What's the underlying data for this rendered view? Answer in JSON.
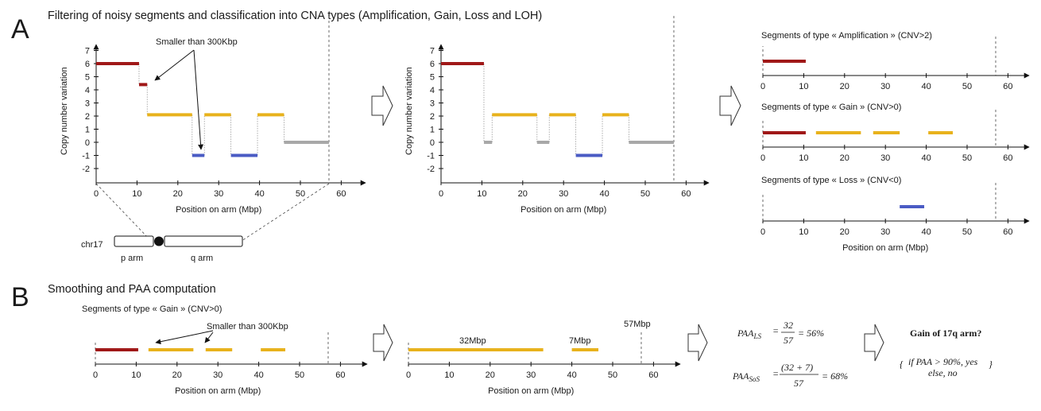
{
  "colors": {
    "amplification": "#a01818",
    "gain": "#e8b21c",
    "loss": "#4a5bc4",
    "neutral": "#a8a8a8",
    "axis": "#111111",
    "connector": "#999999"
  },
  "panel_a": {
    "letter": "A",
    "heading": "Filtering of noisy segments and classification into CNA types (Amplification, Gain, Loss and LOH)",
    "annotation": "Smaller than 300Kbp",
    "ylabel": "Copy number variation",
    "xlabel": "Position on arm (Mbp)",
    "chromosome": {
      "name": "chr17",
      "p_label": "p arm",
      "q_label": "q arm"
    },
    "type_titles": {
      "amplification": "Segments of type « Amplification » (CNV>2)",
      "gain": "Segments of type « Gain » (CNV>0)",
      "loss": "Segments of type « Loss » (CNV<0)"
    }
  },
  "panel_b": {
    "letter": "B",
    "heading": "Smoothing and PAA computation",
    "subtitle": "Segments of type « Gain » (CNV>0)",
    "annotation": "Smaller than 300Kbp",
    "xlabel": "Position on arm (Mbp)",
    "label_32": "32Mbp",
    "label_7": "7Mbp",
    "label_57": "57Mbp",
    "formula_ls": {
      "lhs": "PAA",
      "sub": "LS",
      "num": "32",
      "den": "57",
      "result": "= 56%"
    },
    "formula_sos": {
      "lhs": "PAA",
      "sub": "SoS",
      "num": "(32 + 7)",
      "den": "57",
      "result": "= 68%"
    },
    "question": "Gain of 17q arm?",
    "rule_line1": "if PAA > 90%, yes",
    "rule_line2": "else, no"
  },
  "chart_data": [
    {
      "type": "step-segments",
      "id": "raw",
      "xlabel": "Position on arm (Mbp)",
      "ylabel": "Copy number variation",
      "xlim": [
        0,
        60
      ],
      "ylim": [
        -2,
        7
      ],
      "x_ticks": [
        0,
        10,
        20,
        30,
        40,
        50,
        60
      ],
      "y_ticks": [
        -2,
        -1,
        0,
        1,
        2,
        3,
        4,
        5,
        6,
        7
      ],
      "arm_end": 57,
      "segments": [
        {
          "x0": 0,
          "x1": 10.5,
          "y": 6,
          "type": "amplification"
        },
        {
          "x0": 10.5,
          "x1": 12.5,
          "y": 4.4,
          "type": "amplification"
        },
        {
          "x0": 12.5,
          "x1": 23.5,
          "y": 2.1,
          "type": "gain"
        },
        {
          "x0": 23.5,
          "x1": 26.5,
          "y": -1,
          "type": "loss"
        },
        {
          "x0": 26.5,
          "x1": 33,
          "y": 2.1,
          "type": "gain"
        },
        {
          "x0": 33,
          "x1": 39.5,
          "y": -1,
          "type": "loss"
        },
        {
          "x0": 39.5,
          "x1": 46,
          "y": 2.1,
          "type": "gain"
        },
        {
          "x0": 46,
          "x1": 57,
          "y": 0,
          "type": "neutral"
        }
      ]
    },
    {
      "type": "step-segments",
      "id": "filtered",
      "xlabel": "Position on arm (Mbp)",
      "ylabel": "Copy number variation",
      "xlim": [
        0,
        60
      ],
      "ylim": [
        -2,
        7
      ],
      "x_ticks": [
        0,
        10,
        20,
        30,
        40,
        50,
        60
      ],
      "y_ticks": [
        -2,
        -1,
        0,
        1,
        2,
        3,
        4,
        5,
        6,
        7
      ],
      "arm_end": 57,
      "segments": [
        {
          "x0": 0,
          "x1": 10.5,
          "y": 6,
          "type": "amplification"
        },
        {
          "x0": 10.5,
          "x1": 12.5,
          "y": 0,
          "type": "neutral"
        },
        {
          "x0": 12.5,
          "x1": 23.5,
          "y": 2.1,
          "type": "gain"
        },
        {
          "x0": 23.5,
          "x1": 26.5,
          "y": 0,
          "type": "neutral"
        },
        {
          "x0": 26.5,
          "x1": 33,
          "y": 2.1,
          "type": "gain"
        },
        {
          "x0": 33,
          "x1": 39.5,
          "y": -1,
          "type": "loss"
        },
        {
          "x0": 39.5,
          "x1": 46,
          "y": 2.1,
          "type": "gain"
        },
        {
          "x0": 46,
          "x1": 57,
          "y": 0,
          "type": "neutral"
        }
      ]
    },
    {
      "type": "segments-1d",
      "id": "amplification",
      "title": "Segments of type « Amplification » (CNV>2)",
      "xlim": [
        0,
        60
      ],
      "x_ticks": [
        0,
        10,
        20,
        30,
        40,
        50,
        60
      ],
      "arm_end": 57,
      "segments": [
        {
          "x0": 0,
          "x1": 10.5,
          "type": "amplification"
        }
      ]
    },
    {
      "type": "segments-1d",
      "id": "gain",
      "title": "Segments of type « Gain » (CNV>0)",
      "xlim": [
        0,
        60
      ],
      "x_ticks": [
        0,
        10,
        20,
        30,
        40,
        50,
        60
      ],
      "arm_end": 57,
      "segments": [
        {
          "x0": 0,
          "x1": 10.5,
          "type": "amplification"
        },
        {
          "x0": 13,
          "x1": 24,
          "type": "gain"
        },
        {
          "x0": 27,
          "x1": 33.5,
          "type": "gain"
        },
        {
          "x0": 40.5,
          "x1": 46.5,
          "type": "gain"
        }
      ]
    },
    {
      "type": "segments-1d",
      "id": "loss",
      "xlabel": "Position on arm (Mbp)",
      "title": "Segments of type « Loss » (CNV<0)",
      "xlim": [
        0,
        60
      ],
      "x_ticks": [
        0,
        10,
        20,
        30,
        40,
        50,
        60
      ],
      "arm_end": 57,
      "segments": [
        {
          "x0": 33.5,
          "x1": 39.5,
          "type": "loss"
        }
      ]
    },
    {
      "type": "segments-1d",
      "id": "b_gain",
      "xlabel": "Position on arm (Mbp)",
      "xlim": [
        0,
        60
      ],
      "x_ticks": [
        0,
        10,
        20,
        30,
        40,
        50,
        60
      ],
      "arm_end": 57,
      "segments": [
        {
          "x0": 0,
          "x1": 10.5,
          "type": "amplification"
        },
        {
          "x0": 13,
          "x1": 24,
          "type": "gain"
        },
        {
          "x0": 27,
          "x1": 33.5,
          "type": "gain"
        },
        {
          "x0": 40.5,
          "x1": 46.5,
          "type": "gain"
        }
      ]
    },
    {
      "type": "segments-1d",
      "id": "b_smoothed",
      "xlabel": "Position on arm (Mbp)",
      "xlim": [
        0,
        60
      ],
      "x_ticks": [
        0,
        10,
        20,
        30,
        40,
        50,
        60
      ],
      "arm_end": 57,
      "segments": [
        {
          "x0": 0,
          "x1": 33,
          "type": "gain"
        },
        {
          "x0": 40,
          "x1": 46.5,
          "type": "gain"
        }
      ]
    }
  ]
}
